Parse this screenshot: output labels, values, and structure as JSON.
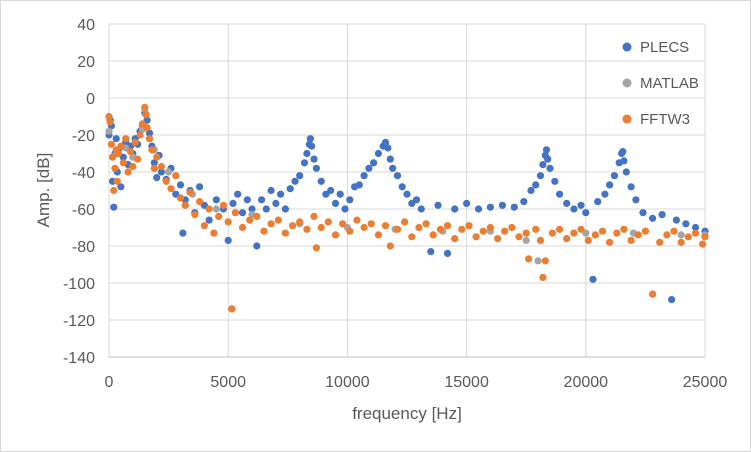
{
  "chart_data": {
    "type": "scatter",
    "title": "",
    "xlabel": "frequency [Hz]",
    "ylabel": "Amp. [dB]",
    "xlim": [
      0,
      25000
    ],
    "ylim": [
      -140,
      40
    ],
    "xticks": [
      0,
      5000,
      10000,
      15000,
      20000,
      25000
    ],
    "yticks": [
      -140,
      -120,
      -100,
      -80,
      -60,
      -40,
      -20,
      0,
      20,
      40
    ],
    "grid": "major vertical and horizontal",
    "legend_position": "right",
    "draw_order": [
      "PLECS",
      "MATLAB",
      "FFTW3"
    ],
    "series": [
      {
        "name": "PLECS",
        "color": "#4472C4",
        "points": [
          [
            0,
            -20
          ],
          [
            50,
            -12
          ],
          [
            100,
            -15
          ],
          [
            150,
            -45
          ],
          [
            200,
            -59
          ],
          [
            250,
            -30
          ],
          [
            300,
            -22
          ],
          [
            350,
            -40
          ],
          [
            400,
            -28
          ],
          [
            500,
            -48
          ],
          [
            600,
            -32
          ],
          [
            700,
            -24
          ],
          [
            800,
            -36
          ],
          [
            900,
            -26
          ],
          [
            1000,
            -30
          ],
          [
            1100,
            -22
          ],
          [
            1200,
            -25
          ],
          [
            1300,
            -18
          ],
          [
            1400,
            -15
          ],
          [
            1500,
            -8
          ],
          [
            1600,
            -12
          ],
          [
            1700,
            -19
          ],
          [
            1800,
            -26
          ],
          [
            1900,
            -35
          ],
          [
            2000,
            -43
          ],
          [
            2100,
            -31
          ],
          [
            2200,
            -40
          ],
          [
            2400,
            -44
          ],
          [
            2600,
            -38
          ],
          [
            2800,
            -52
          ],
          [
            3000,
            -47
          ],
          [
            3100,
            -73
          ],
          [
            3200,
            -55
          ],
          [
            3400,
            -50
          ],
          [
            3600,
            -62
          ],
          [
            3800,
            -48
          ],
          [
            4000,
            -58
          ],
          [
            4200,
            -66
          ],
          [
            4500,
            -55
          ],
          [
            4800,
            -60
          ],
          [
            5000,
            -77
          ],
          [
            5200,
            -57
          ],
          [
            5400,
            -52
          ],
          [
            5600,
            -62
          ],
          [
            5800,
            -55
          ],
          [
            6000,
            -60
          ],
          [
            6200,
            -80
          ],
          [
            6400,
            -55
          ],
          [
            6600,
            -60
          ],
          [
            6800,
            -50
          ],
          [
            7000,
            -57
          ],
          [
            7200,
            -52
          ],
          [
            7400,
            -60
          ],
          [
            7600,
            -49
          ],
          [
            7800,
            -45
          ],
          [
            8000,
            -42
          ],
          [
            8200,
            -35
          ],
          [
            8300,
            -30
          ],
          [
            8400,
            -25
          ],
          [
            8450,
            -22
          ],
          [
            8500,
            -26
          ],
          [
            8600,
            -33
          ],
          [
            8700,
            -38
          ],
          [
            8900,
            -45
          ],
          [
            9100,
            -52
          ],
          [
            9300,
            -50
          ],
          [
            9500,
            -57
          ],
          [
            9700,
            -52
          ],
          [
            9900,
            -60
          ],
          [
            10100,
            -55
          ],
          [
            10300,
            -48
          ],
          [
            10500,
            -47
          ],
          [
            10700,
            -42
          ],
          [
            10900,
            -38
          ],
          [
            11100,
            -35
          ],
          [
            11300,
            -30
          ],
          [
            11500,
            -26
          ],
          [
            11600,
            -24
          ],
          [
            11700,
            -27
          ],
          [
            11800,
            -33
          ],
          [
            11900,
            -38
          ],
          [
            12100,
            -42
          ],
          [
            12300,
            -48
          ],
          [
            12500,
            -52
          ],
          [
            12700,
            -57
          ],
          [
            12900,
            -55
          ],
          [
            13100,
            -60
          ],
          [
            13500,
            -83
          ],
          [
            13800,
            -58
          ],
          [
            14200,
            -84
          ],
          [
            14500,
            -60
          ],
          [
            15000,
            -57
          ],
          [
            15500,
            -60
          ],
          [
            16000,
            -59
          ],
          [
            16500,
            -58
          ],
          [
            17000,
            -59
          ],
          [
            17400,
            -56
          ],
          [
            17700,
            -50
          ],
          [
            17900,
            -47
          ],
          [
            18100,
            -42
          ],
          [
            18200,
            -36
          ],
          [
            18300,
            -31
          ],
          [
            18350,
            -28
          ],
          [
            18400,
            -33
          ],
          [
            18500,
            -38
          ],
          [
            18700,
            -45
          ],
          [
            18900,
            -52
          ],
          [
            19200,
            -57
          ],
          [
            19500,
            -60
          ],
          [
            19800,
            -58
          ],
          [
            20000,
            -62
          ],
          [
            20300,
            -98
          ],
          [
            20500,
            -56
          ],
          [
            20800,
            -52
          ],
          [
            21000,
            -47
          ],
          [
            21200,
            -42
          ],
          [
            21400,
            -35
          ],
          [
            21500,
            -30
          ],
          [
            21550,
            -29
          ],
          [
            21600,
            -34
          ],
          [
            21700,
            -40
          ],
          [
            21900,
            -48
          ],
          [
            22100,
            -55
          ],
          [
            22400,
            -62
          ],
          [
            22800,
            -65
          ],
          [
            23200,
            -63
          ],
          [
            23600,
            -109
          ],
          [
            23800,
            -66
          ],
          [
            24200,
            -68
          ],
          [
            24600,
            -70
          ],
          [
            25000,
            -72
          ]
        ]
      },
      {
        "name": "MATLAB",
        "color": "#A5A5A5",
        "points": [
          [
            0,
            -18
          ],
          [
            300,
            -30
          ],
          [
            700,
            -27
          ],
          [
            1000,
            -32
          ],
          [
            1400,
            -17
          ],
          [
            1500,
            -6
          ],
          [
            1900,
            -28
          ],
          [
            2500,
            -40
          ],
          [
            3500,
            -52
          ],
          [
            4500,
            -60
          ],
          [
            5150,
            -114
          ],
          [
            6000,
            -63
          ],
          [
            8000,
            -68
          ],
          [
            10000,
            -70
          ],
          [
            12000,
            -71
          ],
          [
            14000,
            -72
          ],
          [
            16000,
            -72
          ],
          [
            17500,
            -77
          ],
          [
            18000,
            -88
          ],
          [
            20000,
            -73
          ],
          [
            22000,
            -73
          ],
          [
            22800,
            -106
          ],
          [
            24000,
            -74
          ],
          [
            25000,
            -74
          ]
        ]
      },
      {
        "name": "FFTW3",
        "color": "#ED7D31",
        "points": [
          [
            0,
            -10
          ],
          [
            40,
            -13
          ],
          [
            100,
            -25
          ],
          [
            150,
            -32
          ],
          [
            200,
            -50
          ],
          [
            250,
            -38
          ],
          [
            300,
            -28
          ],
          [
            350,
            -45
          ],
          [
            400,
            -30
          ],
          [
            500,
            -26
          ],
          [
            600,
            -35
          ],
          [
            700,
            -22
          ],
          [
            800,
            -40
          ],
          [
            900,
            -29
          ],
          [
            1000,
            -37
          ],
          [
            1100,
            -24
          ],
          [
            1200,
            -33
          ],
          [
            1300,
            -20
          ],
          [
            1400,
            -14
          ],
          [
            1500,
            -5
          ],
          [
            1550,
            -9
          ],
          [
            1600,
            -16
          ],
          [
            1700,
            -22
          ],
          [
            1800,
            -28
          ],
          [
            1900,
            -38
          ],
          [
            2000,
            -32
          ],
          [
            2200,
            -37
          ],
          [
            2400,
            -45
          ],
          [
            2600,
            -49
          ],
          [
            2800,
            -42
          ],
          [
            3000,
            -54
          ],
          [
            3200,
            -58
          ],
          [
            3400,
            -51
          ],
          [
            3600,
            -63
          ],
          [
            3800,
            -56
          ],
          [
            4000,
            -69
          ],
          [
            4200,
            -60
          ],
          [
            4400,
            -73
          ],
          [
            4600,
            -64
          ],
          [
            4800,
            -58
          ],
          [
            5000,
            -67
          ],
          [
            5150,
            -114
          ],
          [
            5300,
            -62
          ],
          [
            5600,
            -70
          ],
          [
            5900,
            -66
          ],
          [
            6200,
            -64
          ],
          [
            6500,
            -72
          ],
          [
            6800,
            -68
          ],
          [
            7100,
            -66
          ],
          [
            7400,
            -73
          ],
          [
            7700,
            -69
          ],
          [
            8000,
            -67
          ],
          [
            8300,
            -71
          ],
          [
            8600,
            -64
          ],
          [
            8700,
            -81
          ],
          [
            8900,
            -70
          ],
          [
            9200,
            -67
          ],
          [
            9500,
            -74
          ],
          [
            9800,
            -68
          ],
          [
            10100,
            -72
          ],
          [
            10400,
            -66
          ],
          [
            10700,
            -70
          ],
          [
            11000,
            -68
          ],
          [
            11300,
            -74
          ],
          [
            11600,
            -69
          ],
          [
            11800,
            -80
          ],
          [
            12100,
            -71
          ],
          [
            12400,
            -67
          ],
          [
            12700,
            -75
          ],
          [
            13000,
            -70
          ],
          [
            13300,
            -68
          ],
          [
            13600,
            -74
          ],
          [
            13900,
            -71
          ],
          [
            14200,
            -69
          ],
          [
            14500,
            -76
          ],
          [
            14800,
            -71
          ],
          [
            15100,
            -69
          ],
          [
            15400,
            -75
          ],
          [
            15700,
            -72
          ],
          [
            16000,
            -70
          ],
          [
            16300,
            -76
          ],
          [
            16600,
            -72
          ],
          [
            16900,
            -70
          ],
          [
            17200,
            -75
          ],
          [
            17500,
            -73
          ],
          [
            17600,
            -87
          ],
          [
            17900,
            -71
          ],
          [
            18100,
            -77
          ],
          [
            18200,
            -97
          ],
          [
            18300,
            -88
          ],
          [
            18600,
            -73
          ],
          [
            18900,
            -71
          ],
          [
            19200,
            -76
          ],
          [
            19500,
            -73
          ],
          [
            19800,
            -71
          ],
          [
            20100,
            -77
          ],
          [
            20400,
            -74
          ],
          [
            20700,
            -72
          ],
          [
            21000,
            -78
          ],
          [
            21300,
            -73
          ],
          [
            21600,
            -71
          ],
          [
            21900,
            -77
          ],
          [
            22200,
            -74
          ],
          [
            22500,
            -72
          ],
          [
            22800,
            -106
          ],
          [
            23100,
            -78
          ],
          [
            23400,
            -74
          ],
          [
            23700,
            -72
          ],
          [
            24000,
            -78
          ],
          [
            24300,
            -75
          ],
          [
            24600,
            -73
          ],
          [
            24900,
            -79
          ],
          [
            25000,
            -75
          ]
        ]
      }
    ]
  }
}
